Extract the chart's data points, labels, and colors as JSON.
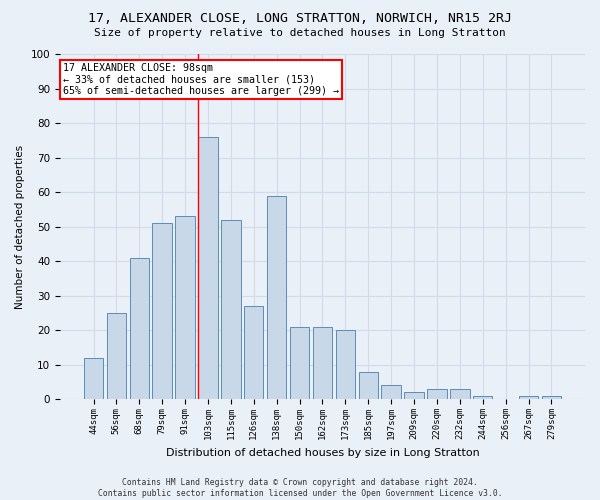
{
  "title": "17, ALEXANDER CLOSE, LONG STRATTON, NORWICH, NR15 2RJ",
  "subtitle": "Size of property relative to detached houses in Long Stratton",
  "xlabel": "Distribution of detached houses by size in Long Stratton",
  "ylabel": "Number of detached properties",
  "footer_line1": "Contains HM Land Registry data © Crown copyright and database right 2024.",
  "footer_line2": "Contains public sector information licensed under the Open Government Licence v3.0.",
  "bar_labels": [
    "44sqm",
    "56sqm",
    "68sqm",
    "79sqm",
    "91sqm",
    "103sqm",
    "115sqm",
    "126sqm",
    "138sqm",
    "150sqm",
    "162sqm",
    "173sqm",
    "185sqm",
    "197sqm",
    "209sqm",
    "220sqm",
    "232sqm",
    "244sqm",
    "256sqm",
    "267sqm",
    "279sqm"
  ],
  "bar_heights": [
    12,
    25,
    41,
    51,
    53,
    76,
    52,
    27,
    59,
    21,
    21,
    20,
    8,
    4,
    2,
    3,
    3,
    1,
    0,
    1,
    1
  ],
  "bar_color": "#c8d8e8",
  "bar_edge_color": "#5b8db8",
  "grid_color": "#d0dce8",
  "background_color": "#eaf0f8",
  "annotation_text": "17 ALEXANDER CLOSE: 98sqm\n← 33% of detached houses are smaller (153)\n65% of semi-detached houses are larger (299) →",
  "annotation_box_color": "white",
  "annotation_box_edge_color": "red",
  "vline_x": 4.55,
  "vline_color": "red",
  "ylim": [
    0,
    100
  ],
  "yticks": [
    0,
    10,
    20,
    30,
    40,
    50,
    60,
    70,
    80,
    90,
    100
  ]
}
